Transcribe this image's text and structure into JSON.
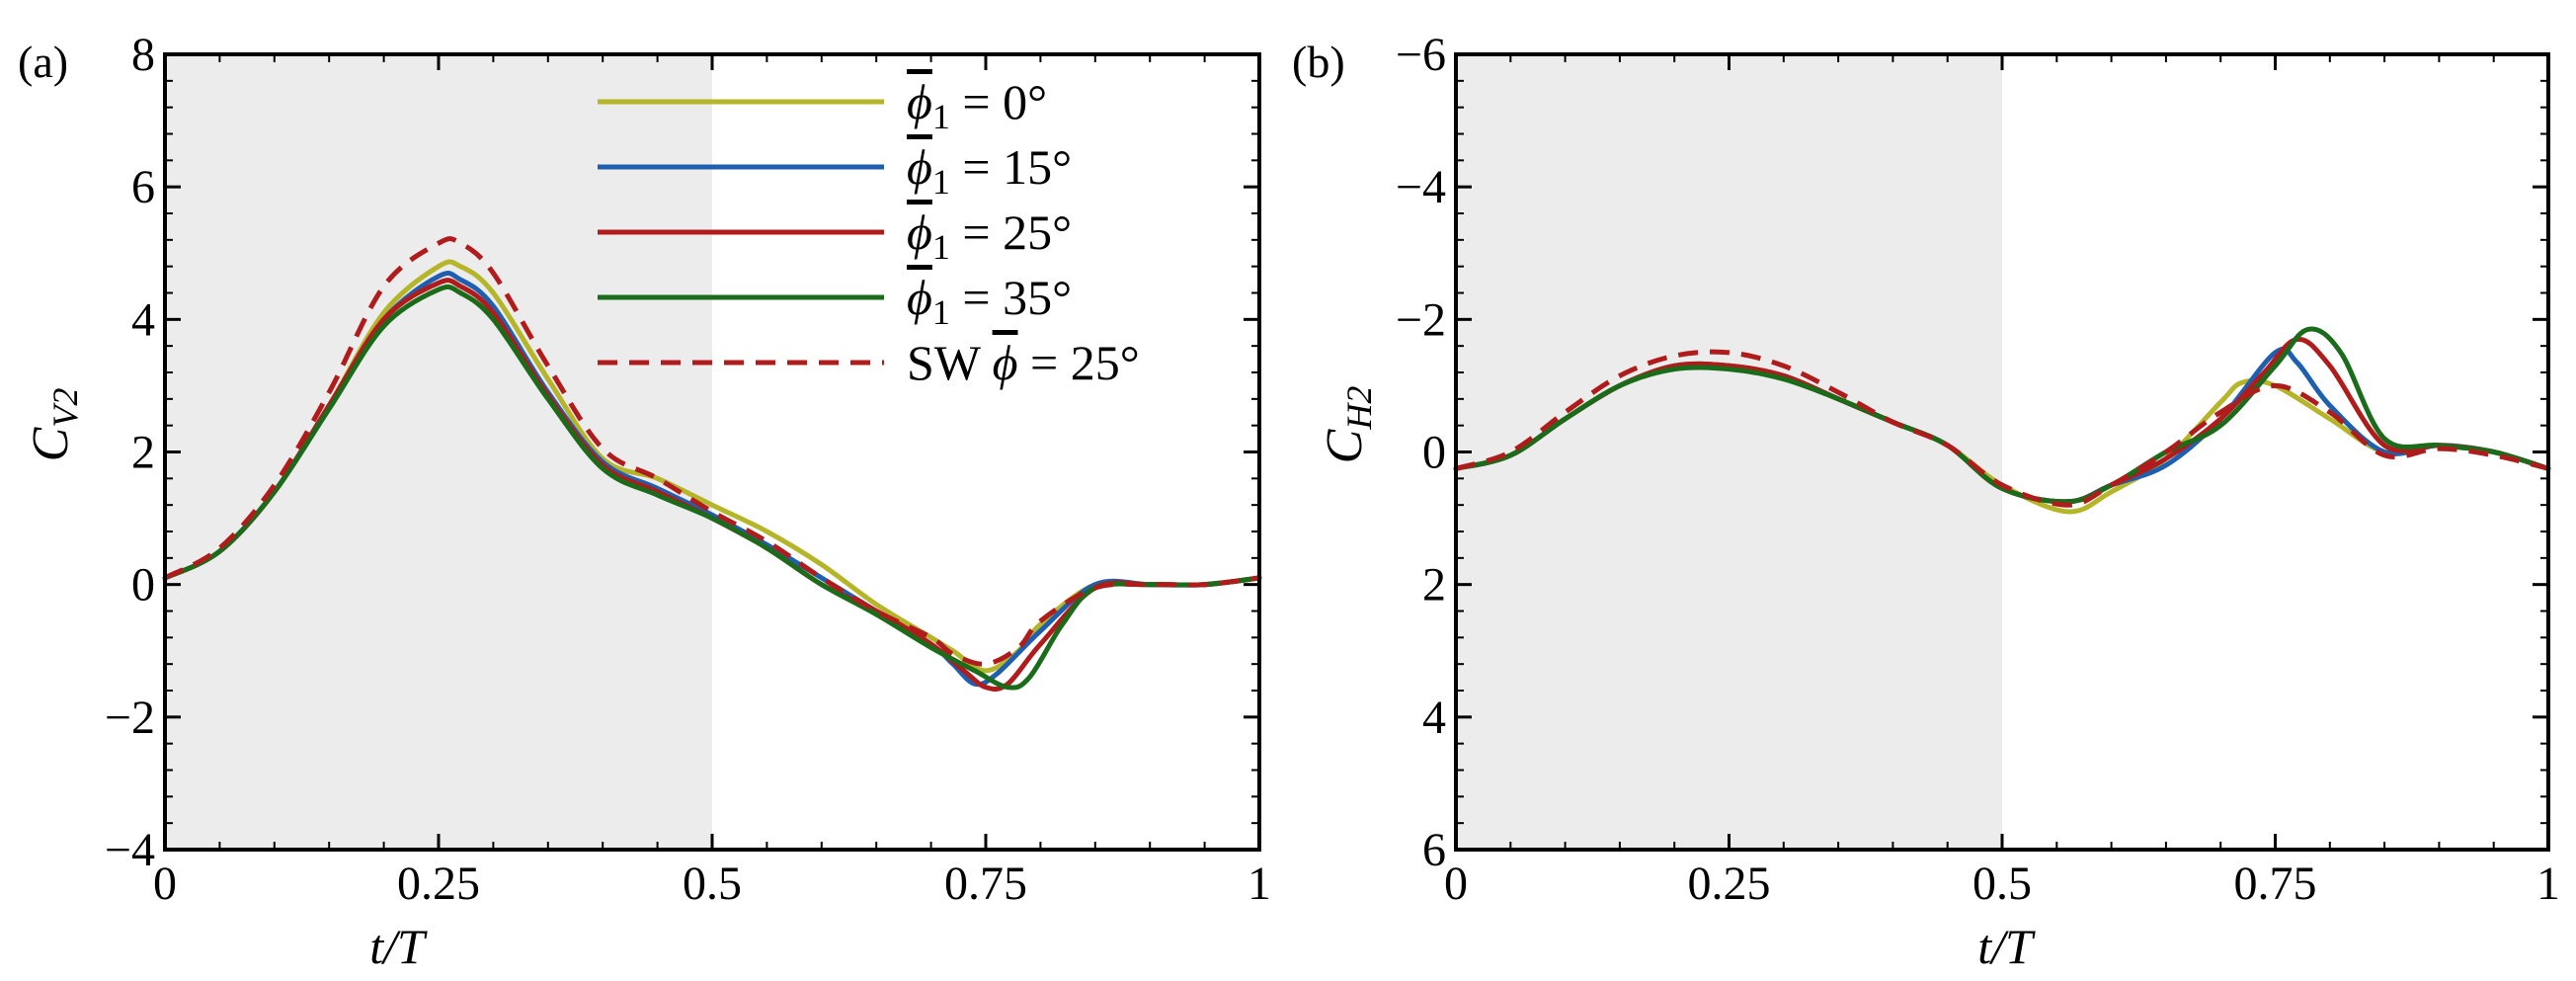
{
  "chart_data": [
    {
      "type": "line",
      "panel_label": "(a)",
      "xlabel": "t/T",
      "ylabel_main": "C",
      "ylabel_sub": "V2",
      "xlim": [
        0,
        1
      ],
      "ylim": [
        -4,
        8
      ],
      "y_inverted": false,
      "shaded_region": [
        0,
        0.5
      ],
      "xticks": [
        0,
        0.25,
        0.5,
        0.75,
        1
      ],
      "xtick_labels": [
        "0",
        "0.25",
        "0.5",
        "0.75",
        "1"
      ],
      "yticks": [
        -4,
        -2,
        0,
        2,
        4,
        6,
        8
      ],
      "ytick_labels": [
        "−4",
        "−2",
        "0",
        "2",
        "4",
        "6",
        "8"
      ],
      "legend": {
        "placement": "top-center",
        "entries": [
          {
            "prefix": "",
            "symbol": "ϕ",
            "sub": "1",
            "suffix": " = 0°"
          },
          {
            "prefix": "",
            "symbol": "ϕ",
            "sub": "1",
            "suffix": " = 15°"
          },
          {
            "prefix": "",
            "symbol": "ϕ",
            "sub": "1",
            "suffix": " = 25°"
          },
          {
            "prefix": "",
            "symbol": "ϕ",
            "sub": "1",
            "suffix": " = 35°"
          },
          {
            "prefix": "SW ",
            "symbol": "ϕ",
            "sub": "",
            "suffix": " = 25°"
          }
        ]
      },
      "series": [
        {
          "name": "phi1 = 0 deg",
          "color": "#b5b52a",
          "dash": "none",
          "x": [
            0,
            0.05,
            0.1,
            0.15,
            0.2,
            0.25,
            0.27,
            0.3,
            0.35,
            0.4,
            0.45,
            0.5,
            0.55,
            0.6,
            0.65,
            0.7,
            0.72,
            0.75,
            0.78,
            0.8,
            0.85,
            0.9,
            0.95,
            1.0
          ],
          "y": [
            0.1,
            0.5,
            1.4,
            2.7,
            4.1,
            4.8,
            4.8,
            4.4,
            3.1,
            1.9,
            1.6,
            1.2,
            0.8,
            0.3,
            -0.3,
            -0.8,
            -1.0,
            -1.3,
            -1.0,
            -0.6,
            0.0,
            0.0,
            0.0,
            0.1
          ]
        },
        {
          "name": "phi1 = 15 deg",
          "color": "#1f5fb0",
          "dash": "none",
          "x": [
            0,
            0.05,
            0.1,
            0.15,
            0.2,
            0.25,
            0.27,
            0.3,
            0.35,
            0.4,
            0.45,
            0.5,
            0.55,
            0.6,
            0.65,
            0.7,
            0.72,
            0.74,
            0.76,
            0.8,
            0.85,
            0.9,
            0.95,
            1.0
          ],
          "y": [
            0.1,
            0.5,
            1.4,
            2.7,
            4.0,
            4.65,
            4.6,
            4.2,
            2.9,
            1.85,
            1.45,
            1.05,
            0.6,
            0.1,
            -0.4,
            -0.9,
            -1.2,
            -1.5,
            -1.35,
            -0.7,
            0.0,
            0.0,
            0.0,
            0.1
          ]
        },
        {
          "name": "phi1 = 25 deg",
          "color": "#b01c1c",
          "dash": "none",
          "x": [
            0,
            0.05,
            0.1,
            0.15,
            0.2,
            0.25,
            0.27,
            0.3,
            0.35,
            0.4,
            0.45,
            0.5,
            0.55,
            0.6,
            0.65,
            0.7,
            0.73,
            0.75,
            0.77,
            0.8,
            0.85,
            0.9,
            0.95,
            1.0
          ],
          "y": [
            0.1,
            0.5,
            1.4,
            2.7,
            4.0,
            4.55,
            4.5,
            4.1,
            2.85,
            1.8,
            1.4,
            1.0,
            0.55,
            0.0,
            -0.4,
            -0.9,
            -1.3,
            -1.55,
            -1.5,
            -0.9,
            -0.05,
            0.0,
            0.0,
            0.1
          ]
        },
        {
          "name": "phi1 = 35 deg",
          "color": "#1a6b1a",
          "dash": "none",
          "x": [
            0,
            0.05,
            0.1,
            0.15,
            0.2,
            0.25,
            0.27,
            0.3,
            0.35,
            0.4,
            0.45,
            0.5,
            0.55,
            0.6,
            0.65,
            0.7,
            0.74,
            0.77,
            0.79,
            0.82,
            0.85,
            0.9,
            0.95,
            1.0
          ],
          "y": [
            0.1,
            0.5,
            1.4,
            2.65,
            3.9,
            4.45,
            4.4,
            4.0,
            2.8,
            1.75,
            1.35,
            1.0,
            0.55,
            0.0,
            -0.45,
            -0.95,
            -1.3,
            -1.55,
            -1.4,
            -0.6,
            -0.05,
            0.0,
            0.0,
            0.1
          ]
        },
        {
          "name": "SW phi = 25 deg",
          "color": "#b01c1c",
          "dash": "dashed",
          "x": [
            0,
            0.05,
            0.1,
            0.15,
            0.2,
            0.25,
            0.27,
            0.3,
            0.35,
            0.4,
            0.45,
            0.5,
            0.55,
            0.6,
            0.65,
            0.7,
            0.72,
            0.75,
            0.78,
            0.8,
            0.85,
            0.9,
            0.95,
            1.0
          ],
          "y": [
            0.1,
            0.55,
            1.5,
            2.9,
            4.5,
            5.15,
            5.15,
            4.7,
            3.3,
            2.05,
            1.6,
            1.1,
            0.65,
            0.1,
            -0.4,
            -0.8,
            -1.05,
            -1.2,
            -0.95,
            -0.55,
            -0.05,
            0.0,
            0.0,
            0.1
          ]
        }
      ]
    },
    {
      "type": "line",
      "panel_label": "(b)",
      "xlabel": "t/T",
      "ylabel_main": "C",
      "ylabel_sub": "H2",
      "xlim": [
        0,
        1
      ],
      "ylim": [
        6,
        -6
      ],
      "y_inverted": true,
      "shaded_region": [
        0,
        0.5
      ],
      "xticks": [
        0,
        0.25,
        0.5,
        0.75,
        1
      ],
      "xtick_labels": [
        "0",
        "0.25",
        "0.5",
        "0.75",
        "1"
      ],
      "yticks": [
        -6,
        -4,
        -2,
        0,
        2,
        4,
        6
      ],
      "ytick_labels": [
        "−6",
        "−4",
        "−2",
        "0",
        "2",
        "4",
        "6"
      ],
      "series": [
        {
          "name": "phi1 = 0 deg",
          "color": "#b5b52a",
          "dash": "none",
          "x": [
            0,
            0.05,
            0.1,
            0.15,
            0.2,
            0.25,
            0.3,
            0.35,
            0.4,
            0.45,
            0.5,
            0.56,
            0.6,
            0.65,
            0.7,
            0.72,
            0.75,
            0.8,
            0.85,
            0.9,
            0.95,
            1.0
          ],
          "y": [
            0.25,
            0.05,
            -0.5,
            -1.0,
            -1.3,
            -1.3,
            -1.15,
            -0.8,
            -0.45,
            -0.1,
            0.5,
            0.9,
            0.6,
            0.1,
            -0.75,
            -1.05,
            -1.0,
            -0.5,
            0.0,
            -0.1,
            0.0,
            0.25
          ]
        },
        {
          "name": "phi1 = 15 deg",
          "color": "#1f5fb0",
          "dash": "none",
          "x": [
            0,
            0.05,
            0.1,
            0.15,
            0.2,
            0.25,
            0.3,
            0.35,
            0.4,
            0.45,
            0.5,
            0.56,
            0.6,
            0.65,
            0.7,
            0.75,
            0.77,
            0.8,
            0.85,
            0.9,
            0.95,
            1.0
          ],
          "y": [
            0.25,
            0.05,
            -0.5,
            -1.0,
            -1.3,
            -1.3,
            -1.15,
            -0.8,
            -0.45,
            -0.1,
            0.55,
            0.75,
            0.5,
            0.2,
            -0.5,
            -1.5,
            -1.35,
            -0.7,
            0.0,
            -0.1,
            0.0,
            0.25
          ]
        },
        {
          "name": "phi1 = 25 deg",
          "color": "#b01c1c",
          "dash": "none",
          "x": [
            0,
            0.05,
            0.1,
            0.15,
            0.2,
            0.25,
            0.3,
            0.35,
            0.4,
            0.45,
            0.5,
            0.56,
            0.6,
            0.65,
            0.7,
            0.74,
            0.77,
            0.8,
            0.85,
            0.9,
            0.95,
            1.0
          ],
          "y": [
            0.25,
            0.05,
            -0.5,
            -1.0,
            -1.3,
            -1.3,
            -1.15,
            -0.8,
            -0.45,
            -0.1,
            0.55,
            0.75,
            0.5,
            0.1,
            -0.5,
            -1.2,
            -1.7,
            -1.3,
            -0.1,
            -0.1,
            0.0,
            0.25
          ]
        },
        {
          "name": "phi1 = 35 deg",
          "color": "#1a6b1a",
          "dash": "none",
          "x": [
            0,
            0.05,
            0.1,
            0.15,
            0.2,
            0.25,
            0.3,
            0.35,
            0.4,
            0.45,
            0.5,
            0.56,
            0.6,
            0.65,
            0.7,
            0.75,
            0.78,
            0.81,
            0.85,
            0.9,
            0.95,
            1.0
          ],
          "y": [
            0.25,
            0.05,
            -0.5,
            -1.0,
            -1.25,
            -1.25,
            -1.1,
            -0.8,
            -0.45,
            -0.1,
            0.55,
            0.75,
            0.5,
            0.0,
            -0.4,
            -1.3,
            -1.85,
            -1.5,
            -0.2,
            -0.1,
            0.0,
            0.25
          ]
        },
        {
          "name": "SW phi = 25 deg",
          "color": "#b01c1c",
          "dash": "dashed",
          "x": [
            0,
            0.05,
            0.1,
            0.15,
            0.2,
            0.25,
            0.3,
            0.35,
            0.4,
            0.45,
            0.5,
            0.56,
            0.6,
            0.65,
            0.7,
            0.75,
            0.8,
            0.85,
            0.9,
            0.95,
            1.0
          ],
          "y": [
            0.25,
            0.0,
            -0.6,
            -1.15,
            -1.45,
            -1.5,
            -1.3,
            -0.9,
            -0.45,
            -0.1,
            0.5,
            0.8,
            0.5,
            0.0,
            -0.6,
            -1.0,
            -0.6,
            0.05,
            -0.05,
            0.05,
            0.25
          ]
        }
      ]
    }
  ]
}
